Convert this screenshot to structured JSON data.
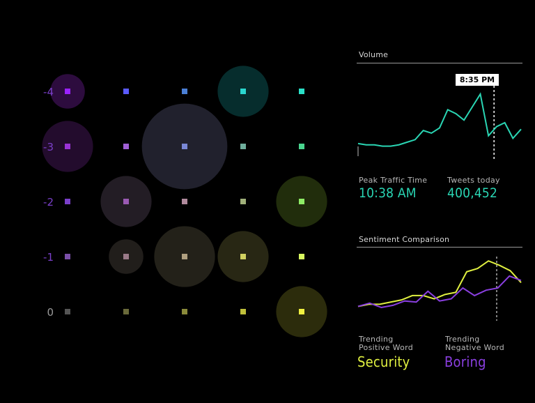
{
  "chart_data": [
    {
      "type": "scatter",
      "subtype": "bubble",
      "y_tick_labels": [
        "-4",
        "-3",
        "-2",
        "-1",
        "0"
      ],
      "y_tick_color": "#7a3fc9",
      "columns": 5,
      "rows": 5,
      "grid_marker_colors": [
        [
          "#9a22ff",
          "#5a5aff",
          "#4a7fd6",
          "#2ad6cf",
          "#2ae0c8"
        ],
        [
          "#9a33d6",
          "#a060d6",
          "#7a88d6",
          "#6fae9c",
          "#4ad68f"
        ],
        [
          "#7a3fc9",
          "#9a5ab3",
          "#b08a9c",
          "#a0b07a",
          "#8eec66"
        ],
        [
          "#7a4fa8",
          "#9a7a88",
          "#b0a080",
          "#d0d060",
          "#d8f860"
        ],
        [
          "#555555",
          "#6a6a3a",
          "#8a8a3a",
          "#bfbf3a",
          "#f0f040"
        ]
      ],
      "bubbles": [
        {
          "row": 0,
          "col": 0,
          "size": 0.42,
          "color": "#3a0f4f"
        },
        {
          "row": 1,
          "col": 0,
          "size": 0.62,
          "color": "#2d0f3a"
        },
        {
          "row": 0,
          "col": 3,
          "size": 0.62,
          "color": "#083a3a"
        },
        {
          "row": 1,
          "col": 2,
          "size": 1.04,
          "color": "#2a2a3a"
        },
        {
          "row": 2,
          "col": 1,
          "size": 0.62,
          "color": "#2d2530"
        },
        {
          "row": 2,
          "col": 4,
          "size": 0.62,
          "color": "#2a3a10"
        },
        {
          "row": 3,
          "col": 1,
          "size": 0.42,
          "color": "#2a2622"
        },
        {
          "row": 3,
          "col": 2,
          "size": 0.74,
          "color": "#2d2a20"
        },
        {
          "row": 3,
          "col": 3,
          "size": 0.62,
          "color": "#33321a"
        },
        {
          "row": 4,
          "col": 4,
          "size": 0.62,
          "color": "#383810"
        }
      ]
    },
    {
      "type": "line",
      "title": "Volume",
      "series_color": "#2ad6b4",
      "values": [
        14,
        13,
        13,
        12,
        12,
        13,
        15,
        17,
        24,
        22,
        26,
        40,
        37,
        32,
        42,
        52,
        20,
        27,
        30,
        18,
        25
      ],
      "marker_index": 16,
      "marker_label": "8:35 PM"
    },
    {
      "type": "line",
      "title": "Sentiment Comparison",
      "series": [
        {
          "color": "#e0f040",
          "values": [
            10,
            12,
            12,
            14,
            16,
            20,
            20,
            17,
            21,
            23,
            42,
            45,
            52,
            48,
            43,
            32
          ]
        },
        {
          "color": "#8a3fe0",
          "values": [
            10,
            13,
            9,
            11,
            15,
            14,
            24,
            15,
            17,
            27,
            20,
            25,
            27,
            38,
            34
          ]
        }
      ]
    }
  ],
  "stats": {
    "peak_label": "Peak Traffic Time",
    "peak_value": "10:38 AM",
    "tweets_label": "Tweets today",
    "tweets_value": "400,452",
    "positive_label_1": "Trending",
    "positive_label_2": "Positive Word",
    "positive_value": "Security",
    "negative_label_1": "Trending",
    "negative_label_2": "Negative Word",
    "negative_value": "Boring"
  },
  "colors": {
    "accent_teal": "#2ad6b4",
    "accent_yellow": "#e0f040",
    "accent_purple": "#8a3fe0"
  }
}
